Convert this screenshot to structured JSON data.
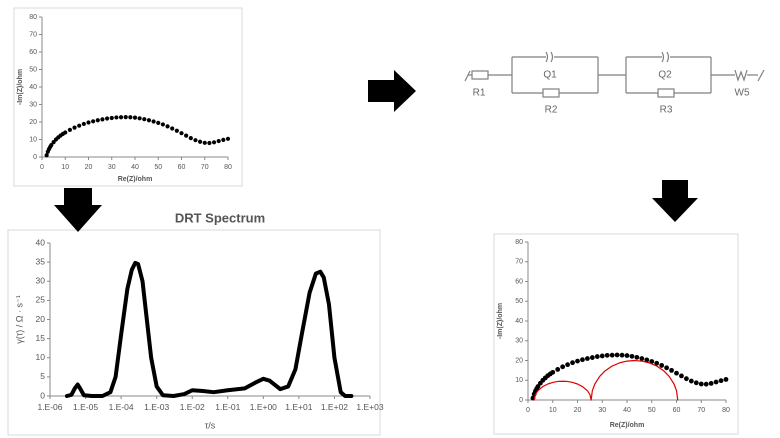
{
  "chart_data": [
    {
      "type": "scatter",
      "xlabel": "Re(Z)/ohm",
      "ylabel": "-Im(Z)/ohm",
      "xlim": [
        0,
        80
      ],
      "ylim": [
        0,
        80
      ],
      "xticks": [
        0,
        10,
        20,
        30,
        40,
        50,
        60,
        70,
        80
      ],
      "yticks": [
        0,
        10,
        20,
        30,
        40,
        50,
        60,
        70,
        80
      ],
      "series": [
        {
          "mode": "markers",
          "color": "#000000",
          "x": [
            2,
            2.5,
            3,
            3.5,
            4,
            5,
            6,
            7,
            8,
            9,
            10,
            12,
            14,
            16,
            18,
            20,
            22,
            24,
            26,
            28,
            30,
            32,
            34,
            36,
            38,
            40,
            42,
            44,
            46,
            48,
            50,
            52,
            54,
            56,
            58,
            60,
            62,
            64,
            66,
            68,
            70,
            72,
            74,
            76,
            78,
            80
          ],
          "values": [
            1,
            3,
            4.5,
            5.7,
            6.8,
            8.5,
            10,
            11.2,
            12.3,
            13.2,
            14,
            15.5,
            16.8,
            17.9,
            18.9,
            19.7,
            20.4,
            21,
            21.5,
            22,
            22.3,
            22.6,
            22.7,
            22.8,
            22.7,
            22.5,
            22.1,
            21.6,
            21,
            20.3,
            19.5,
            18.6,
            17.5,
            16.3,
            15,
            13.6,
            12.2,
            10.8,
            9.6,
            8.7,
            8.1,
            8,
            8.4,
            9.1,
            9.8,
            10.4
          ]
        }
      ]
    },
    {
      "type": "line",
      "title": "DRT Spectrum",
      "xlabel": "τ/s",
      "ylabel": "γ(τ) / Ω · s⁻¹",
      "xscale": "log",
      "xlim": [
        1e-06,
        1000
      ],
      "xticks": [
        {
          "value": 1e-06,
          "label": "1.E-06"
        },
        {
          "value": 1e-05,
          "label": "1.E-05"
        },
        {
          "value": 0.0001,
          "label": "1.E-04"
        },
        {
          "value": 0.001,
          "label": "1.E-03"
        },
        {
          "value": 0.01,
          "label": "1.E-02"
        },
        {
          "value": 0.1,
          "label": "1.E-01"
        },
        {
          "value": 1,
          "label": "1.E+00"
        },
        {
          "value": 10,
          "label": "1.E+01"
        },
        {
          "value": 100,
          "label": "1.E+02"
        },
        {
          "value": 1000,
          "label": "1.E+03"
        }
      ],
      "ylim": [
        0,
        40
      ],
      "yticks": [
        0,
        5,
        10,
        15,
        20,
        25,
        30,
        35,
        40
      ],
      "series": [
        {
          "mode": "lines",
          "color": "#000000",
          "x": [
            3e-06,
            4e-06,
            5e-06,
            6e-06,
            7e-06,
            9e-06,
            1.5e-05,
            3e-05,
            5e-05,
            7e-05,
            0.0001,
            0.00015,
            0.0002,
            0.00025,
            0.0003,
            0.0004,
            0.0005,
            0.0007,
            0.001,
            0.0015,
            0.003,
            0.006,
            0.01,
            0.02,
            0.04,
            0.1,
            0.3,
            0.6,
            1,
            1.5,
            3,
            5,
            8,
            12,
            20,
            30,
            40,
            50,
            70,
            100,
            150,
            200,
            300
          ],
          "values": [
            0,
            0.3,
            2,
            3,
            2,
            0.2,
            0,
            0,
            1,
            5,
            16,
            28,
            33,
            34.8,
            34.5,
            30,
            22,
            10,
            2.5,
            0.2,
            0,
            0.5,
            1.5,
            1.3,
            1,
            1.5,
            2,
            3.5,
            4.5,
            4,
            1.8,
            2.5,
            7,
            16,
            27,
            32,
            32.5,
            31,
            24,
            10,
            1,
            0,
            0
          ]
        }
      ]
    },
    {
      "type": "scatter",
      "xlabel": "Re(Z)/ohm",
      "ylabel": "-Im(Z)/ohm",
      "xlim": [
        0,
        80
      ],
      "ylim": [
        0,
        80
      ],
      "xticks": [
        0,
        10,
        20,
        30,
        40,
        50,
        60,
        70,
        80
      ],
      "yticks": [
        0,
        10,
        20,
        30,
        40,
        50,
        60,
        70,
        80
      ],
      "series": [
        {
          "mode": "markers",
          "color": "#000000",
          "x": [
            2,
            2.5,
            3,
            3.5,
            4,
            5,
            6,
            7,
            8,
            9,
            10,
            12,
            14,
            16,
            18,
            20,
            22,
            24,
            26,
            28,
            30,
            32,
            34,
            36,
            38,
            40,
            42,
            44,
            46,
            48,
            50,
            52,
            54,
            56,
            58,
            60,
            62,
            64,
            66,
            68,
            70,
            72,
            74,
            76,
            78,
            80
          ],
          "values": [
            1,
            3,
            4.5,
            5.7,
            6.8,
            8.5,
            10,
            11.2,
            12.3,
            13.2,
            14,
            15.5,
            16.8,
            17.9,
            18.9,
            19.7,
            20.4,
            21,
            21.5,
            22,
            22.3,
            22.6,
            22.7,
            22.8,
            22.7,
            22.5,
            22.1,
            21.6,
            21,
            20.3,
            19.5,
            18.6,
            17.5,
            16.3,
            15,
            13.6,
            12.2,
            10.8,
            9.6,
            8.7,
            8.1,
            8,
            8.4,
            9.1,
            9.8,
            10.4
          ]
        },
        {
          "mode": "lines",
          "color": "#e00000",
          "x": [
            2.5,
            3,
            4,
            6,
            8,
            10,
            12,
            14,
            16,
            18,
            20,
            22,
            24,
            25,
            25.5
          ],
          "values": [
            0,
            2.8,
            4.7,
            6.8,
            8.1,
            8.9,
            9.4,
            9.5,
            9.4,
            8.9,
            8.1,
            6.8,
            4.7,
            2.8,
            0
          ]
        },
        {
          "mode": "lines",
          "color": "#e00000",
          "x": [
            25.5,
            26,
            27,
            29,
            31,
            34,
            37,
            40,
            43,
            46,
            49,
            52,
            55,
            57,
            59,
            60,
            60.5
          ],
          "values": [
            0,
            4.7,
            8.1,
            12,
            14.6,
            17.2,
            18.8,
            19.7,
            20,
            19.7,
            18.8,
            17.2,
            14.6,
            12,
            8.1,
            4.7,
            0
          ]
        }
      ]
    }
  ],
  "circuit": {
    "labels": [
      "R1",
      "Q1",
      "R2",
      "Q2",
      "R3",
      "W5"
    ]
  }
}
